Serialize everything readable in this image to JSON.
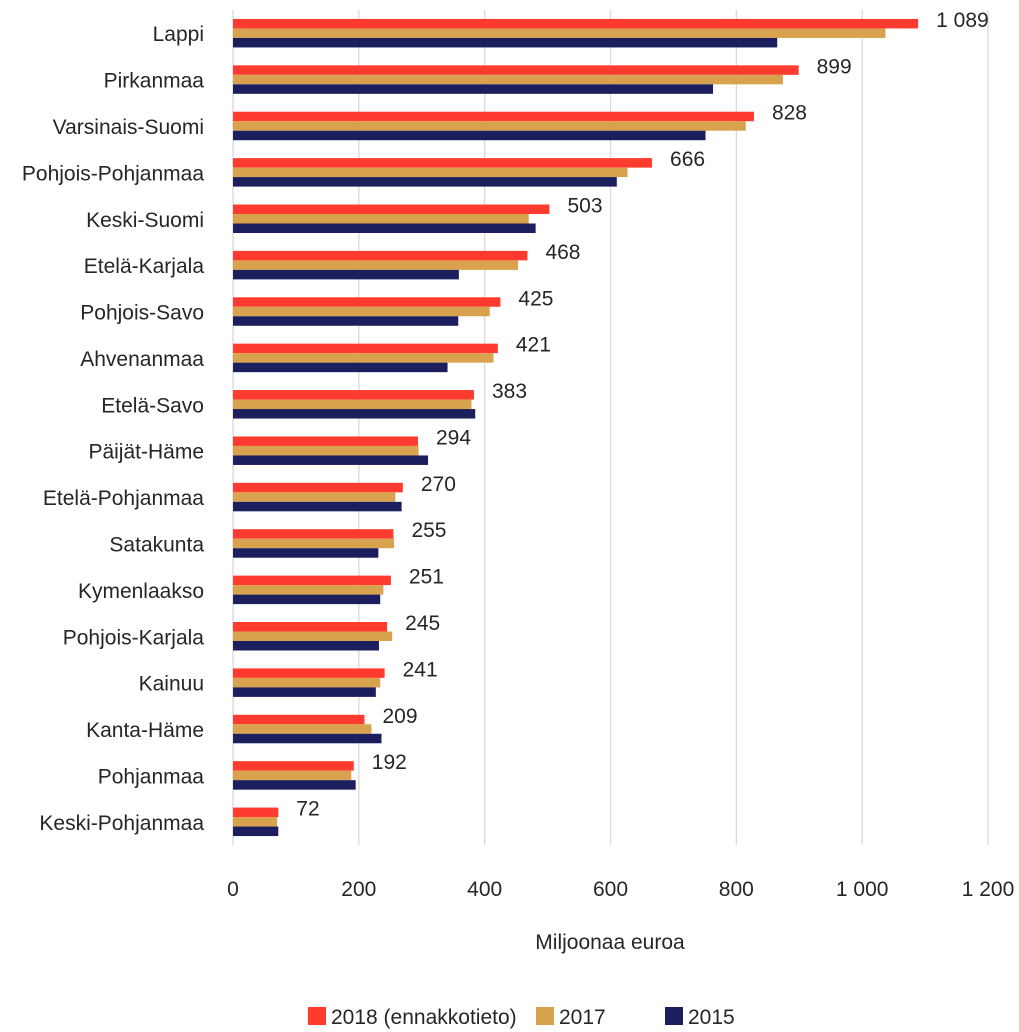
{
  "chart_data": {
    "type": "bar",
    "orientation": "horizontal",
    "xlabel": "Miljoonaa euroa",
    "xlim": [
      0,
      1200
    ],
    "xticks": [
      0,
      200,
      400,
      600,
      800,
      1000,
      1200
    ],
    "xtick_labels": [
      "0",
      "200",
      "400",
      "600",
      "800",
      "1 000",
      "1 200"
    ],
    "grid": "vertical",
    "legend_position": "bottom",
    "categories": [
      "Lappi",
      "Pirkanmaa",
      "Varsinais-Suomi",
      "Pohjois-Pohjanmaa",
      "Keski-Suomi",
      "Etelä-Karjala",
      "Pohjois-Savo",
      "Ahvenanmaa",
      "Etelä-Savo",
      "Päijät-Häme",
      "Etelä-Pohjanmaa",
      "Satakunta",
      "Kymenlaakso",
      "Pohjois-Karjala",
      "Kainuu",
      "Kanta-Häme",
      "Pohjanmaa",
      "Keski-Pohjanmaa"
    ],
    "series": [
      {
        "name": "2018 (ennakkotieto)",
        "color": "#ff3b30",
        "values": [
          1089,
          899,
          828,
          666,
          503,
          468,
          425,
          421,
          383,
          294,
          270,
          255,
          251,
          245,
          241,
          209,
          192,
          72
        ]
      },
      {
        "name": "2017",
        "color": "#d9a24e",
        "values": [
          1037,
          874,
          815,
          627,
          470,
          453,
          408,
          414,
          379,
          295,
          258,
          256,
          239,
          253,
          234,
          220,
          188,
          70
        ]
      },
      {
        "name": "2015",
        "color": "#1c1f5e",
        "values": [
          865,
          763,
          751,
          610,
          481,
          359,
          358,
          341,
          385,
          310,
          268,
          231,
          234,
          232,
          227,
          236,
          195,
          72
        ]
      }
    ],
    "data_labels": [
      "1 089",
      "899",
      "828",
      "666",
      "503",
      "468",
      "425",
      "421",
      "383",
      "294",
      "270",
      "255",
      "251",
      "245",
      "241",
      "209",
      "192",
      "72"
    ]
  }
}
